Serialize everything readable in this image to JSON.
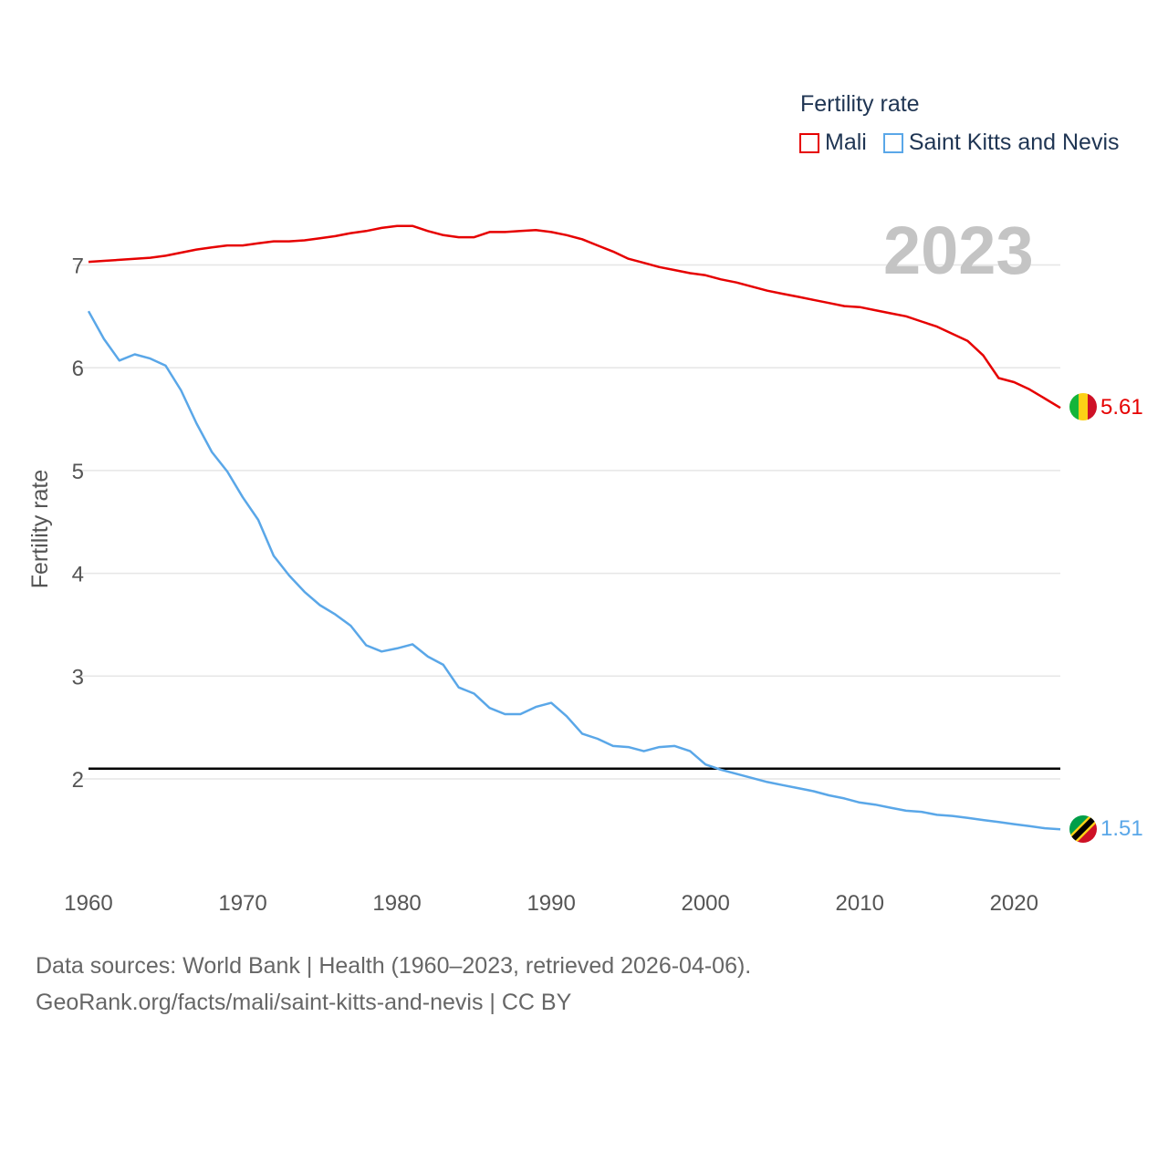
{
  "legend": {
    "title": "Fertility rate",
    "items": [
      {
        "label": "Mali",
        "color": "#e60000"
      },
      {
        "label": "Saint Kitts and Nevis",
        "color": "#5aa7e8"
      }
    ]
  },
  "year_stamp": "2023",
  "end_labels": {
    "mali": "5.61",
    "skn": "1.51"
  },
  "source": {
    "line1": "Data sources: World Bank | Health (1960–2023, retrieved 2026-04-06).",
    "line2": "GeoRank.org/facts/mali/saint-kitts-and-nevis | CC BY"
  },
  "chart_data": {
    "type": "line",
    "title": "Fertility rate",
    "xlabel": "",
    "ylabel": "Fertility rate",
    "xlim": [
      1960,
      2023
    ],
    "ylim": [
      1.0,
      7.6
    ],
    "xticks": [
      1960,
      1970,
      1980,
      1990,
      2000,
      2010,
      2020
    ],
    "yticks": [
      2,
      3,
      4,
      5,
      6,
      7
    ],
    "reference_line": 2.1,
    "x": [
      1960,
      1961,
      1962,
      1963,
      1964,
      1965,
      1966,
      1967,
      1968,
      1969,
      1970,
      1971,
      1972,
      1973,
      1974,
      1975,
      1976,
      1977,
      1978,
      1979,
      1980,
      1981,
      1982,
      1983,
      1984,
      1985,
      1986,
      1987,
      1988,
      1989,
      1990,
      1991,
      1992,
      1993,
      1994,
      1995,
      1996,
      1997,
      1998,
      1999,
      2000,
      2001,
      2002,
      2003,
      2004,
      2005,
      2006,
      2007,
      2008,
      2009,
      2010,
      2011,
      2012,
      2013,
      2014,
      2015,
      2016,
      2017,
      2018,
      2019,
      2020,
      2021,
      2022,
      2023
    ],
    "series": [
      {
        "name": "Mali",
        "color": "#e60000",
        "values": [
          7.03,
          7.04,
          7.05,
          7.06,
          7.07,
          7.09,
          7.12,
          7.15,
          7.17,
          7.19,
          7.19,
          7.21,
          7.23,
          7.23,
          7.24,
          7.26,
          7.28,
          7.31,
          7.33,
          7.36,
          7.38,
          7.38,
          7.33,
          7.29,
          7.27,
          7.27,
          7.32,
          7.32,
          7.33,
          7.34,
          7.32,
          7.29,
          7.25,
          7.19,
          7.13,
          7.06,
          7.02,
          6.98,
          6.95,
          6.92,
          6.9,
          6.86,
          6.83,
          6.79,
          6.75,
          6.72,
          6.69,
          6.66,
          6.63,
          6.6,
          6.59,
          6.56,
          6.53,
          6.5,
          6.45,
          6.4,
          6.33,
          6.26,
          6.12,
          5.9,
          5.86,
          5.79,
          5.7,
          5.61
        ]
      },
      {
        "name": "Saint Kitts and Nevis",
        "color": "#5aa7e8",
        "values": [
          6.55,
          6.28,
          6.07,
          6.13,
          6.09,
          6.02,
          5.78,
          5.46,
          5.18,
          4.99,
          4.74,
          4.52,
          4.17,
          3.98,
          3.82,
          3.69,
          3.6,
          3.49,
          3.3,
          3.24,
          3.27,
          3.31,
          3.19,
          3.11,
          2.89,
          2.83,
          2.69,
          2.63,
          2.63,
          2.7,
          2.74,
          2.61,
          2.44,
          2.39,
          2.32,
          2.31,
          2.27,
          2.31,
          2.32,
          2.27,
          2.14,
          2.09,
          2.05,
          2.01,
          1.97,
          1.94,
          1.91,
          1.88,
          1.84,
          1.81,
          1.77,
          1.75,
          1.72,
          1.69,
          1.68,
          1.65,
          1.64,
          1.62,
          1.6,
          1.58,
          1.56,
          1.54,
          1.52,
          1.51
        ]
      }
    ]
  }
}
